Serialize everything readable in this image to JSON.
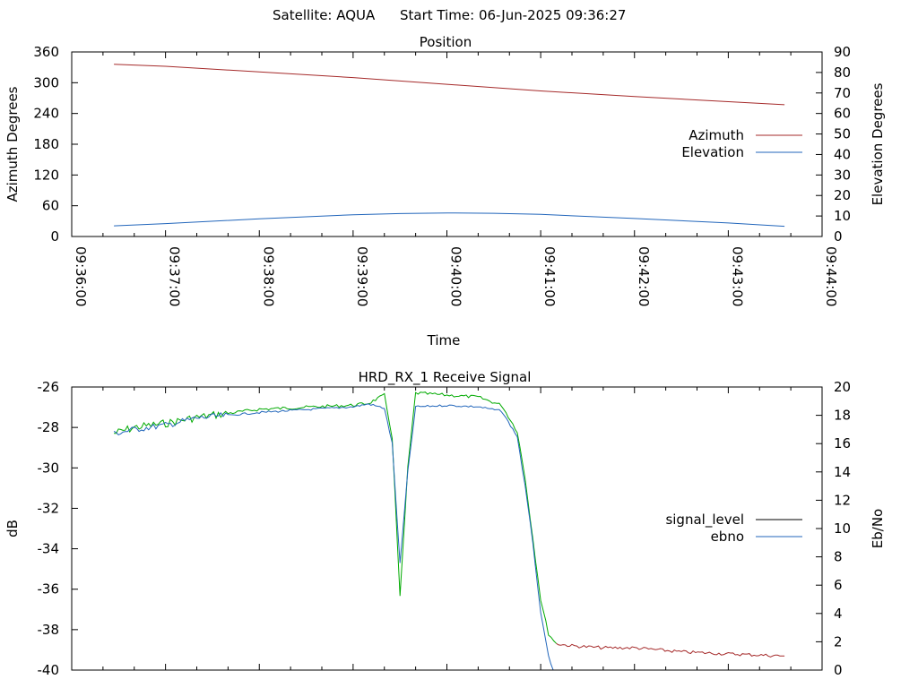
{
  "header": {
    "satellite": "Satellite: AQUA",
    "start_time": "Start Time: 06-Jun-2025 09:36:27"
  },
  "colors": {
    "azimuth": "#a52a2a",
    "elevation": "#2266bb",
    "signal_level": "#000000",
    "ebno": "#2266bb",
    "signal_overlay_green": "#00aa00",
    "signal_tail": "#a52a2a"
  },
  "chart_data": [
    {
      "type": "line",
      "title": "Position",
      "xlabel": "Time",
      "ylabel": "Azimuth Degrees",
      "y2label": "Elevation Degrees",
      "x_ticks": [
        "09:36:00",
        "09:37:00",
        "09:38:00",
        "09:39:00",
        "09:40:00",
        "09:41:00",
        "09:42:00",
        "09:43:00",
        "09:44:00"
      ],
      "xlim": [
        "09:36:00",
        "09:44:00"
      ],
      "ylim": [
        0,
        360
      ],
      "y_ticks": [
        0,
        60,
        120,
        180,
        240,
        300,
        360
      ],
      "y2lim": [
        0,
        90
      ],
      "y2_ticks": [
        0,
        10,
        20,
        30,
        40,
        50,
        60,
        70,
        80,
        90
      ],
      "legend": {
        "placement": "right",
        "entries": [
          "Azimuth",
          "Elevation"
        ]
      },
      "series": [
        {
          "name": "Azimuth",
          "axis": "y",
          "x": [
            "09:36:27",
            "09:37:00",
            "09:38:00",
            "09:39:00",
            "09:40:00",
            "09:41:00",
            "09:42:00",
            "09:43:00",
            "09:43:36"
          ],
          "values": [
            336,
            332,
            321,
            310,
            297,
            284,
            273,
            263,
            257
          ]
        },
        {
          "name": "Elevation",
          "axis": "y2",
          "x": [
            "09:36:27",
            "09:37:00",
            "09:38:00",
            "09:39:00",
            "09:39:30",
            "09:40:00",
            "09:40:30",
            "09:41:00",
            "09:42:00",
            "09:43:00",
            "09:43:36"
          ],
          "values": [
            5.2,
            6.3,
            8.6,
            10.6,
            11.2,
            11.5,
            11.3,
            10.8,
            8.8,
            6.6,
            5.0
          ]
        }
      ]
    },
    {
      "type": "line",
      "title": "HRD_RX_1 Receive Signal",
      "ylabel": "dB",
      "y2label": "Eb/No",
      "ylim": [
        -40,
        -26
      ],
      "y_ticks": [
        -40,
        -38,
        -36,
        -34,
        -32,
        -30,
        -28,
        -26
      ],
      "y2lim": [
        0,
        20
      ],
      "y2_ticks": [
        0,
        2,
        4,
        6,
        8,
        10,
        12,
        14,
        16,
        18,
        20
      ],
      "xlim": [
        "09:36:00",
        "09:44:00"
      ],
      "legend": {
        "placement": "right",
        "entries": [
          "signal_level",
          "ebno"
        ]
      },
      "series": [
        {
          "name": "signal_level",
          "axis": "y",
          "x": [
            "09:36:27",
            "09:36:40",
            "09:37:00",
            "09:37:20",
            "09:37:40",
            "09:38:00",
            "09:38:30",
            "09:39:00",
            "09:39:10",
            "09:39:20",
            "09:39:25",
            "09:39:30",
            "09:39:35",
            "09:39:40",
            "09:40:00",
            "09:40:20",
            "09:40:35",
            "09:40:45",
            "09:40:50",
            "09:40:55",
            "09:41:00",
            "09:41:05",
            "09:41:10",
            "09:41:20",
            "09:41:40",
            "09:42:00",
            "09:42:30",
            "09:43:00",
            "09:43:36"
          ],
          "values": [
            -28.3,
            -28.0,
            -27.8,
            -27.5,
            -27.3,
            -27.1,
            -27.0,
            -26.9,
            -26.8,
            -26.4,
            -28.5,
            -36.4,
            -30.0,
            -26.3,
            -26.4,
            -26.5,
            -26.9,
            -28.2,
            -30.5,
            -33.5,
            -36.5,
            -38.2,
            -38.7,
            -38.8,
            -38.9,
            -38.9,
            -39.1,
            -39.2,
            -39.3
          ]
        },
        {
          "name": "ebno",
          "axis": "y2",
          "x": [
            "09:36:27",
            "09:36:40",
            "09:37:00",
            "09:37:20",
            "09:37:40",
            "09:38:00",
            "09:38:30",
            "09:39:00",
            "09:39:10",
            "09:39:20",
            "09:39:25",
            "09:39:30",
            "09:39:35",
            "09:39:40",
            "09:40:00",
            "09:40:20",
            "09:40:35",
            "09:40:45",
            "09:40:50",
            "09:40:55",
            "09:41:00",
            "09:41:05",
            "09:41:08"
          ],
          "values": [
            16.7,
            17.0,
            17.3,
            17.8,
            18.0,
            18.2,
            18.4,
            18.6,
            18.8,
            18.5,
            16.0,
            7.5,
            14.0,
            18.6,
            18.7,
            18.6,
            18.3,
            16.5,
            13.0,
            9.0,
            4.0,
            1.0,
            0.0
          ]
        }
      ]
    }
  ]
}
